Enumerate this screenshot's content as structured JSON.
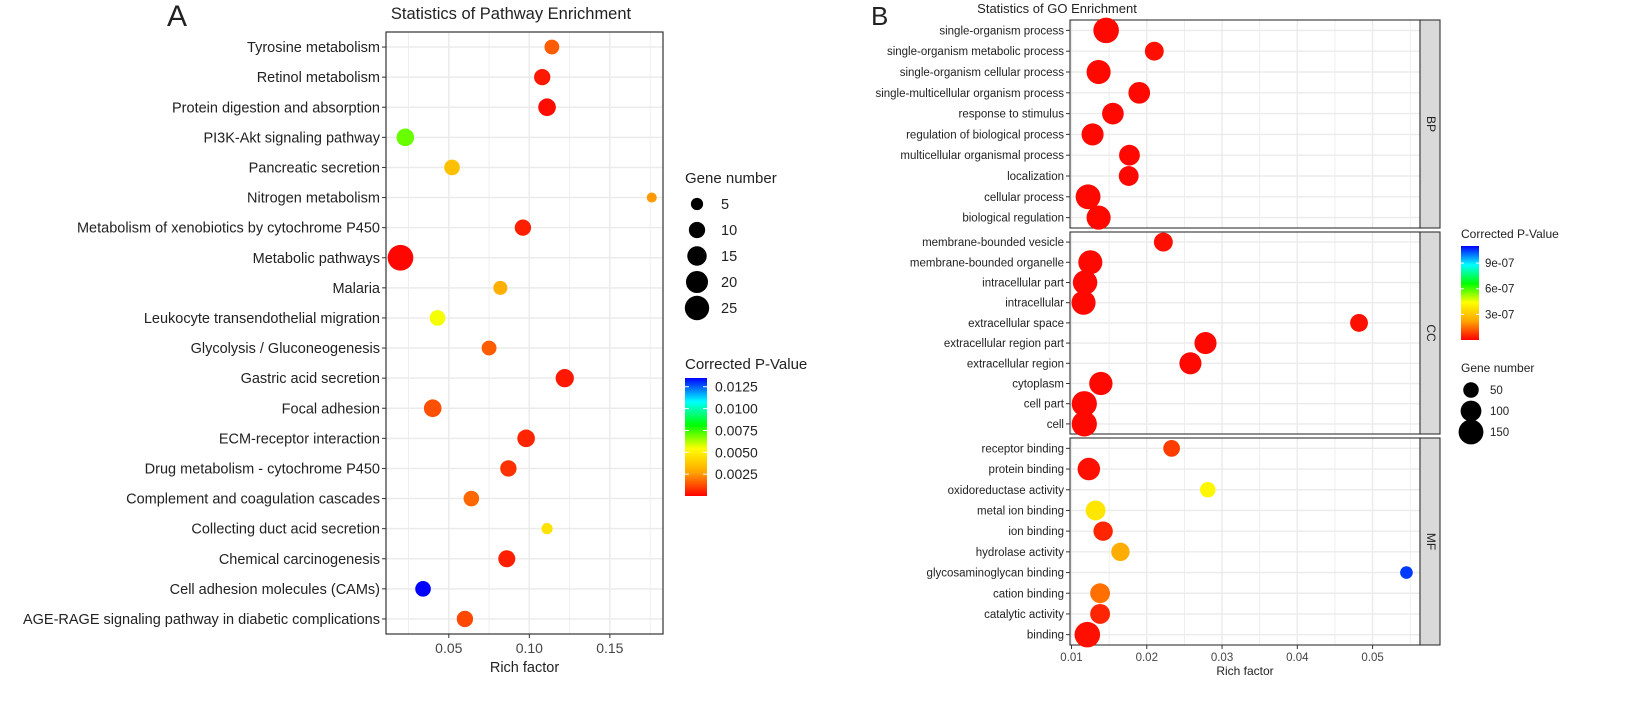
{
  "colors": {
    "scale": [
      "#ff0000",
      "#ffa500",
      "#ffff00",
      "#00ff00",
      "#00ffff",
      "#0000ff"
    ],
    "panel_bg": "#ffffff",
    "grid": "#ebebeb",
    "strip_bg": "#d9d9d9"
  },
  "chart_data": [
    {
      "panel_label": "A",
      "type": "scatter",
      "title": "Statistics of Pathway Enrichment",
      "xlabel": "Rich factor",
      "ylabel": "",
      "xlim": [
        0.011,
        0.183
      ],
      "xticks": [
        0.05,
        0.1,
        0.15
      ],
      "xtick_labels": [
        "0.05",
        "0.10",
        "0.15"
      ],
      "size_legend": {
        "title": "Gene number",
        "values": [
          5,
          10,
          15,
          20,
          25
        ],
        "labels": [
          "5",
          "10",
          "15",
          "20",
          "25"
        ]
      },
      "color_legend": {
        "title": "Corrected P-Value",
        "min": 0.0,
        "max": 0.0135,
        "ticks": [
          0.0125,
          0.01,
          0.0075,
          0.005,
          0.0025
        ],
        "labels": [
          "0.0125",
          "0.0100",
          "0.0075",
          "0.0050",
          "0.0025"
        ]
      },
      "points": [
        {
          "term": "Tyrosine metabolism",
          "x": 0.114,
          "genes": 8,
          "p": 0.0015
        },
        {
          "term": "Retinol metabolism",
          "x": 0.108,
          "genes": 10,
          "p": 0.0004
        },
        {
          "term": "Protein digestion and absorption",
          "x": 0.111,
          "genes": 12,
          "p": 0.0002
        },
        {
          "term": "PI3K-Akt signaling pathway",
          "x": 0.023,
          "genes": 12,
          "p": 0.007
        },
        {
          "term": "Pancreatic secretion",
          "x": 0.052,
          "genes": 9,
          "p": 0.0035
        },
        {
          "term": "Nitrogen metabolism",
          "x": 0.176,
          "genes": 3,
          "p": 0.0025
        },
        {
          "term": "Metabolism of xenobiotics by cytochrome P450",
          "x": 0.096,
          "genes": 10,
          "p": 0.0005
        },
        {
          "term": "Metabolic pathways",
          "x": 0.02,
          "genes": 28,
          "p": 0.0001
        },
        {
          "term": "Malaria",
          "x": 0.082,
          "genes": 7,
          "p": 0.003
        },
        {
          "term": "Leukocyte transendothelial migration",
          "x": 0.043,
          "genes": 9,
          "p": 0.0055
        },
        {
          "term": "Glycolysis / Gluconeogenesis",
          "x": 0.075,
          "genes": 8,
          "p": 0.0015
        },
        {
          "term": "Gastric acid secretion",
          "x": 0.122,
          "genes": 13,
          "p": 0.0004
        },
        {
          "term": "Focal adhesion",
          "x": 0.04,
          "genes": 12,
          "p": 0.0013
        },
        {
          "term": "ECM-receptor interaction",
          "x": 0.098,
          "genes": 12,
          "p": 0.0006
        },
        {
          "term": "Drug metabolism - cytochrome P450",
          "x": 0.087,
          "genes": 10,
          "p": 0.0008
        },
        {
          "term": "Complement and coagulation cascades",
          "x": 0.064,
          "genes": 9,
          "p": 0.0017
        },
        {
          "term": "Collecting duct acid secretion",
          "x": 0.111,
          "genes": 4,
          "p": 0.0045
        },
        {
          "term": "Chemical carcinogenesis",
          "x": 0.086,
          "genes": 11,
          "p": 0.0005
        },
        {
          "term": "Cell adhesion molecules (CAMs)",
          "x": 0.034,
          "genes": 9,
          "p": 0.0135
        },
        {
          "term": "AGE-RAGE signaling pathway in diabetic complications",
          "x": 0.06,
          "genes": 10,
          "p": 0.0012
        }
      ]
    },
    {
      "panel_label": "B",
      "type": "scatter",
      "title": "Statistics of GO Enrichment",
      "xlabel": "Rich factor",
      "ylabel": "",
      "xlim": [
        0.0098,
        0.0563
      ],
      "xticks": [
        0.01,
        0.02,
        0.03,
        0.04,
        0.05
      ],
      "xtick_labels": [
        "0.01",
        "0.02",
        "0.03",
        "0.04",
        "0.05"
      ],
      "size_legend": {
        "title": "Gene number",
        "values": [
          50,
          100,
          150
        ],
        "labels": [
          "50",
          "100",
          "150"
        ]
      },
      "color_legend": {
        "title": "Corrected P-Value",
        "min": 0.0,
        "max": 1.1e-06,
        "ticks": [
          9e-07,
          6e-07,
          3e-07
        ],
        "labels": [
          "9e-07",
          "6e-07",
          "3e-07"
        ]
      },
      "facets": [
        {
          "label": "BP",
          "points": [
            {
              "term": "single-organism process",
              "x": 0.0146,
              "genes": 160,
              "p": 1e-08
            },
            {
              "term": "single-organism metabolic process",
              "x": 0.021,
              "genes": 80,
              "p": 2e-08
            },
            {
              "term": "single-organism cellular process",
              "x": 0.0136,
              "genes": 140,
              "p": 1e-08
            },
            {
              "term": "single-multicellular organism process",
              "x": 0.019,
              "genes": 110,
              "p": 1e-08
            },
            {
              "term": "response to stimulus",
              "x": 0.0155,
              "genes": 110,
              "p": 1e-08
            },
            {
              "term": "regulation of biological process",
              "x": 0.0128,
              "genes": 115,
              "p": 1e-08
            },
            {
              "term": "multicellular organismal process",
              "x": 0.0177,
              "genes": 100,
              "p": 1e-08
            },
            {
              "term": "localization",
              "x": 0.0176,
              "genes": 90,
              "p": 1e-08
            },
            {
              "term": "cellular process",
              "x": 0.0122,
              "genes": 150,
              "p": 1e-08
            },
            {
              "term": "biological regulation",
              "x": 0.0136,
              "genes": 140,
              "p": 1e-08
            }
          ]
        },
        {
          "label": "CC",
          "points": [
            {
              "term": "membrane-bounded vesicle",
              "x": 0.0222,
              "genes": 80,
              "p": 2e-08
            },
            {
              "term": "membrane-bounded organelle",
              "x": 0.0125,
              "genes": 140,
              "p": 1e-08
            },
            {
              "term": "intracellular part",
              "x": 0.0118,
              "genes": 145,
              "p": 1e-08
            },
            {
              "term": "intracellular",
              "x": 0.0116,
              "genes": 140,
              "p": 1e-08
            },
            {
              "term": "extracellular space",
              "x": 0.0482,
              "genes": 70,
              "p": 2e-08
            },
            {
              "term": "extracellular region part",
              "x": 0.0278,
              "genes": 115,
              "p": 1e-08
            },
            {
              "term": "extracellular region",
              "x": 0.0258,
              "genes": 115,
              "p": 1e-08
            },
            {
              "term": "cytoplasm",
              "x": 0.0139,
              "genes": 130,
              "p": 1e-08
            },
            {
              "term": "cell part",
              "x": 0.0117,
              "genes": 155,
              "p": 1e-08
            },
            {
              "term": "cell",
              "x": 0.0117,
              "genes": 155,
              "p": 1e-08
            }
          ]
        },
        {
          "label": "MF",
          "points": [
            {
              "term": "receptor binding",
              "x": 0.0233,
              "genes": 60,
              "p": 8e-08
            },
            {
              "term": "protein binding",
              "x": 0.0123,
              "genes": 120,
              "p": 2e-08
            },
            {
              "term": "oxidoreductase activity",
              "x": 0.0281,
              "genes": 50,
              "p": 4.2e-07
            },
            {
              "term": "metal ion binding",
              "x": 0.0132,
              "genes": 90,
              "p": 3.8e-07
            },
            {
              "term": "ion binding",
              "x": 0.0142,
              "genes": 85,
              "p": 5e-08
            },
            {
              "term": "hydrolase activity",
              "x": 0.0165,
              "genes": 75,
              "p": 2.4e-07
            },
            {
              "term": "glycosaminoglycan binding",
              "x": 0.0545,
              "genes": 30,
              "p": 1.05e-06
            },
            {
              "term": "cation binding",
              "x": 0.0138,
              "genes": 90,
              "p": 1.5e-07
            },
            {
              "term": "catalytic activity",
              "x": 0.0138,
              "genes": 90,
              "p": 5e-08
            },
            {
              "term": "binding",
              "x": 0.0121,
              "genes": 160,
              "p": 2e-08
            }
          ]
        }
      ]
    }
  ]
}
